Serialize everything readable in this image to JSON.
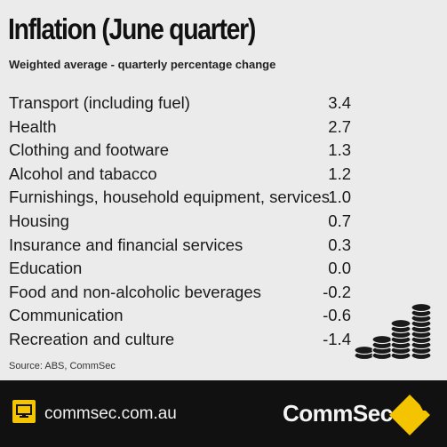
{
  "header": {
    "title": "Inflation (June quarter)",
    "subtitle": "Weighted average - quarterly percentage change"
  },
  "rows": [
    {
      "label": "Transport (including fuel)",
      "value": "3.4"
    },
    {
      "label": "Health",
      "value": "2.7"
    },
    {
      "label": "Clothing and footware",
      "value": "1.3"
    },
    {
      "label": "Alcohol and tabacco",
      "value": "1.2"
    },
    {
      "label": "Furnishings, household equipment, services",
      "value": "1.0"
    },
    {
      "label": "Housing",
      "value": "0.7"
    },
    {
      "label": "Insurance and financial services",
      "value": "0.3"
    },
    {
      "label": "Education",
      "value": "0.0"
    },
    {
      "label": "Food and non-alcoholic beverages",
      "value": "-0.2"
    },
    {
      "label": "Communication",
      "value": "-0.6"
    },
    {
      "label": "Recreation and culture",
      "value": "-1.4"
    }
  ],
  "source": "Source: ABS, CommSec",
  "footer": {
    "website": "commsec.com.au",
    "brand": "CommSec",
    "website_icon": "monitor-icon",
    "logo_icon": "commbank-diamond-logo"
  },
  "decoration": {
    "icon": "coin-stacks-icon"
  },
  "colors": {
    "background": "#ebebeb",
    "footer": "#111111",
    "accent": "#f5c400"
  }
}
